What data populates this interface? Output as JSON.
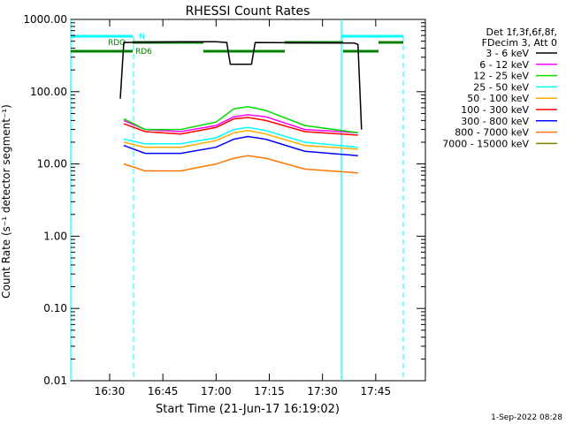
{
  "chart_data": {
    "type": "line",
    "title": "RHESSI Count Rates",
    "xlabel": "Start Time (21-Jun-17 16:19:02)",
    "ylabel": "Count Rate (s⁻¹ detector segment⁻¹)",
    "yscale": "log",
    "xlim": [
      "16:19:02",
      "17:59:00"
    ],
    "ylim": [
      0.01,
      1000
    ],
    "x_ticks": [
      "16:30",
      "16:45",
      "17:00",
      "17:15",
      "17:30",
      "17:45"
    ],
    "y_ticks": [
      "1000.00",
      "100.00",
      "10.00",
      "1.00",
      "0.10",
      "0.01"
    ],
    "grid": false,
    "legend_position": "top-right",
    "legend_header": [
      "Det 1f,3f,6f,8f,",
      "FDecim 3, Att 0"
    ],
    "series": [
      {
        "name": "3 - 6 keV",
        "color": "#000000",
        "x": [
          "16:33",
          "16:34",
          "16:50",
          "17:00",
          "17:03",
          "17:04",
          "17:10",
          "17:11",
          "17:39",
          "17:40",
          "17:41"
        ],
        "y": [
          80,
          480,
          490,
          490,
          480,
          240,
          240,
          480,
          470,
          450,
          30
        ]
      },
      {
        "name": "6 - 12 keV",
        "color": "#ff00ff",
        "x": [
          "16:34",
          "16:40",
          "16:50",
          "17:00",
          "17:05",
          "17:09",
          "17:14",
          "17:25",
          "17:40"
        ],
        "y": [
          40,
          30,
          28,
          34,
          45,
          48,
          45,
          30,
          27
        ]
      },
      {
        "name": "12 - 25 keV",
        "color": "#00dd00",
        "x": [
          "16:34",
          "16:40",
          "16:50",
          "17:00",
          "17:05",
          "17:09",
          "17:14",
          "17:25",
          "17:40"
        ],
        "y": [
          42,
          30,
          30,
          38,
          58,
          62,
          55,
          34,
          27
        ]
      },
      {
        "name": "25 - 50 keV",
        "color": "#00ffff",
        "x": [
          "16:34",
          "16:40",
          "16:50",
          "17:00",
          "17:05",
          "17:09",
          "17:14",
          "17:25",
          "17:40"
        ],
        "y": [
          22,
          19,
          19,
          23,
          30,
          32,
          29,
          20,
          17
        ]
      },
      {
        "name": "50 - 100 keV",
        "color": "#ffaa00",
        "x": [
          "16:34",
          "16:40",
          "16:50",
          "17:00",
          "17:05",
          "17:09",
          "17:14",
          "17:25",
          "17:40"
        ],
        "y": [
          20,
          17,
          17,
          21,
          27,
          29,
          26,
          18,
          16
        ]
      },
      {
        "name": "100 - 300 keV",
        "color": "#ff0000",
        "x": [
          "16:34",
          "16:40",
          "16:50",
          "17:00",
          "17:05",
          "17:09",
          "17:14",
          "17:25",
          "17:40"
        ],
        "y": [
          36,
          28,
          26,
          32,
          42,
          44,
          40,
          28,
          25
        ]
      },
      {
        "name": "300 - 800 keV",
        "color": "#0000ff",
        "x": [
          "16:34",
          "16:40",
          "16:50",
          "17:00",
          "17:05",
          "17:09",
          "17:14",
          "17:25",
          "17:40"
        ],
        "y": [
          18,
          14,
          14,
          17,
          22,
          24,
          22,
          15,
          13
        ]
      },
      {
        "name": "800 - 7000 keV",
        "color": "#ff7700",
        "x": [
          "16:34",
          "16:40",
          "16:50",
          "17:00",
          "17:05",
          "17:09",
          "17:14",
          "17:25",
          "17:40"
        ],
        "y": [
          10,
          8,
          8,
          10,
          12,
          13,
          12,
          8.5,
          7.5
        ]
      },
      {
        "name": "7000 - 15000 keV",
        "color": "#808000",
        "x": [],
        "y": []
      }
    ],
    "annotations": [
      {
        "text": "N",
        "color": "#00ffff"
      },
      {
        "text": "RDO",
        "color": "#008000"
      },
      {
        "text": "RD6",
        "color": "#008000"
      }
    ]
  },
  "footer_date": "1-Sep-2022 08:28"
}
